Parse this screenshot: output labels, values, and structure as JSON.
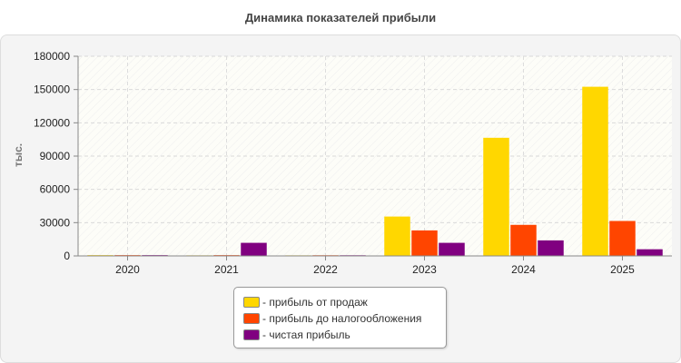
{
  "chart_data": {
    "type": "bar",
    "title": "Динамика показателей прибыли",
    "ylabel": "тыс.",
    "xlabel": "",
    "categories": [
      "2020",
      "2021",
      "2022",
      "2023",
      "2024",
      "2025"
    ],
    "ylim": [
      0,
      180000
    ],
    "yticks": [
      "0",
      "30000",
      "60000",
      "90000",
      "120000",
      "150000",
      "180000"
    ],
    "grid": true,
    "legend_position": "bottom-center",
    "series": [
      {
        "name": "- прибыль от продаж",
        "color": "#FFD700",
        "values": [
          700,
          500,
          500,
          35500,
          106500,
          152500
        ]
      },
      {
        "name": "- прибыль до налогообложения",
        "color": "#FF4500",
        "values": [
          700,
          700,
          600,
          23000,
          28000,
          31500
        ]
      },
      {
        "name": "- чистая прибыль",
        "color": "#800080",
        "values": [
          700,
          11800,
          600,
          11800,
          14000,
          6000
        ]
      }
    ]
  }
}
